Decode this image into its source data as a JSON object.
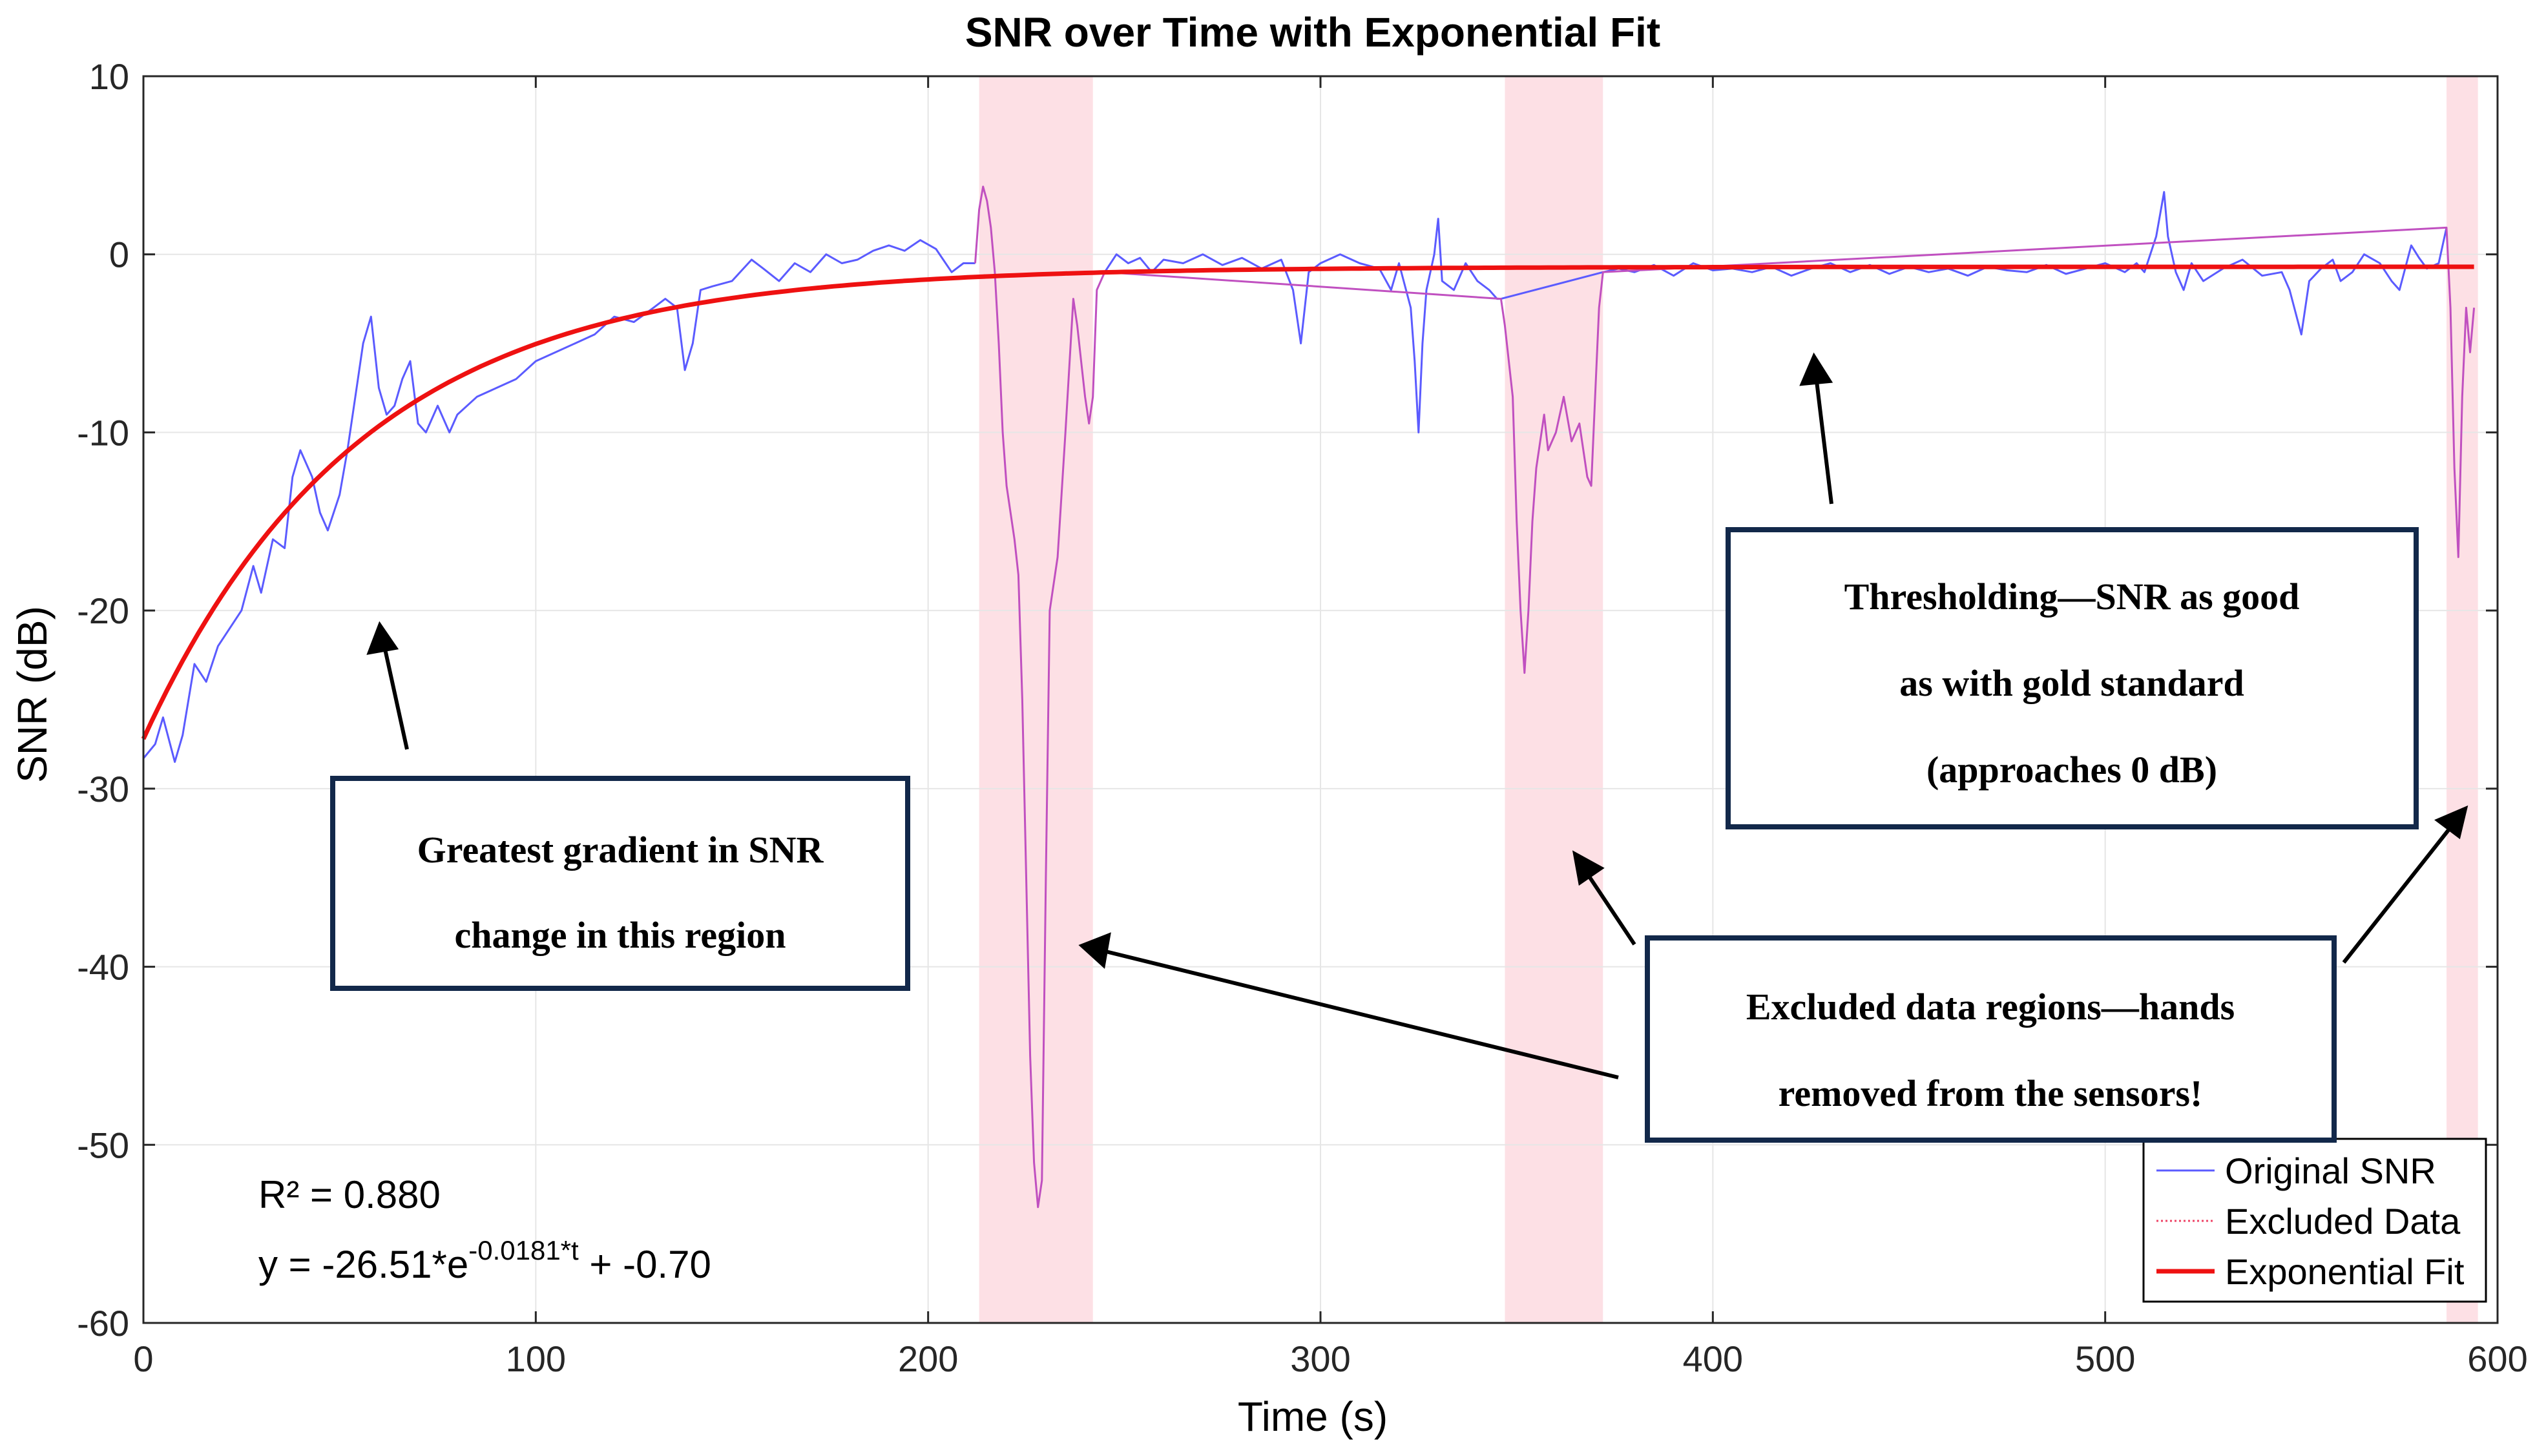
{
  "chart_data": {
    "type": "line",
    "title": "SNR over Time with Exponential Fit",
    "xlabel": "Time (s)",
    "ylabel": "SNR (dB)",
    "xlim": [
      0,
      600
    ],
    "ylim": [
      -60,
      10
    ],
    "xticks": [
      0,
      100,
      200,
      300,
      400,
      500,
      600
    ],
    "yticks": [
      10,
      0,
      -10,
      -20,
      -30,
      -40,
      -50,
      -60
    ],
    "grid": true,
    "legend_position": "bottom-right",
    "colors": {
      "original": "#5b5bff",
      "excluded": "#c050c0",
      "fit": "#ee1111",
      "shade": "#fde0e5",
      "box_border": "#12284a",
      "arrow": "#000000"
    },
    "legend": [
      "Original SNR",
      "Excluded Data",
      "Exponential Fit"
    ],
    "excluded_regions": [
      [
        213,
        242
      ],
      [
        347,
        372
      ],
      [
        587,
        595
      ]
    ],
    "fit": {
      "a": -26.51,
      "b": -0.0181,
      "c": -0.7
    },
    "stats": {
      "r2_label": "R² = 0.880",
      "eq_prefix": "y = -26.51*e",
      "eq_exponent": "-0.0181*t",
      "eq_suffix": " + -0.70"
    },
    "original_snr": [
      [
        0,
        -28.3
      ],
      [
        3,
        -27.5
      ],
      [
        5,
        -26.0
      ],
      [
        8,
        -28.5
      ],
      [
        10,
        -27.0
      ],
      [
        13,
        -23.0
      ],
      [
        16,
        -24.0
      ],
      [
        19,
        -22.0
      ],
      [
        22,
        -21.0
      ],
      [
        25,
        -20.0
      ],
      [
        28,
        -17.5
      ],
      [
        30,
        -19.0
      ],
      [
        33,
        -16.0
      ],
      [
        36,
        -16.5
      ],
      [
        38,
        -12.5
      ],
      [
        40,
        -11.0
      ],
      [
        43,
        -12.5
      ],
      [
        45,
        -14.5
      ],
      [
        47,
        -15.5
      ],
      [
        50,
        -13.5
      ],
      [
        52,
        -11.0
      ],
      [
        54,
        -8.0
      ],
      [
        56,
        -5.0
      ],
      [
        58,
        -3.5
      ],
      [
        60,
        -7.5
      ],
      [
        62,
        -9.0
      ],
      [
        64,
        -8.5
      ],
      [
        66,
        -7.0
      ],
      [
        68,
        -6.0
      ],
      [
        70,
        -9.5
      ],
      [
        72,
        -10.0
      ],
      [
        75,
        -8.5
      ],
      [
        78,
        -10.0
      ],
      [
        80,
        -9.0
      ],
      [
        85,
        -8.0
      ],
      [
        90,
        -7.5
      ],
      [
        95,
        -7.0
      ],
      [
        100,
        -6.0
      ],
      [
        105,
        -5.5
      ],
      [
        110,
        -5.0
      ],
      [
        115,
        -4.5
      ],
      [
        120,
        -3.5
      ],
      [
        125,
        -3.8
      ],
      [
        130,
        -3.0
      ],
      [
        133,
        -2.5
      ],
      [
        136,
        -3.0
      ],
      [
        138,
        -6.5
      ],
      [
        140,
        -5.0
      ],
      [
        142,
        -2.0
      ],
      [
        145,
        -1.8
      ],
      [
        150,
        -1.5
      ],
      [
        155,
        -0.3
      ],
      [
        158,
        -0.8
      ],
      [
        162,
        -1.5
      ],
      [
        166,
        -0.5
      ],
      [
        170,
        -1.0
      ],
      [
        174,
        0.0
      ],
      [
        178,
        -0.5
      ],
      [
        182,
        -0.3
      ],
      [
        186,
        0.2
      ],
      [
        190,
        0.5
      ],
      [
        194,
        0.2
      ],
      [
        198,
        0.8
      ],
      [
        202,
        0.3
      ],
      [
        206,
        -1.0
      ],
      [
        209,
        -0.5
      ],
      [
        212,
        -0.5
      ]
    ],
    "excluded_series": [
      [
        212,
        -0.5
      ],
      [
        213,
        2.5
      ],
      [
        214,
        3.8
      ],
      [
        215,
        3.0
      ],
      [
        216,
        1.5
      ],
      [
        217,
        -1.0
      ],
      [
        218,
        -5.0
      ],
      [
        219,
        -10.0
      ],
      [
        220,
        -13.0
      ],
      [
        222,
        -16.0
      ],
      [
        223,
        -18.0
      ],
      [
        224,
        -25.0
      ],
      [
        225,
        -35.0
      ],
      [
        226,
        -45.0
      ],
      [
        227,
        -51.0
      ],
      [
        228,
        -53.5
      ],
      [
        229,
        -52.0
      ],
      [
        230,
        -35.0
      ],
      [
        231,
        -20.0
      ],
      [
        233,
        -17.0
      ],
      [
        235,
        -10.0
      ],
      [
        237,
        -2.5
      ],
      [
        238,
        -4.0
      ],
      [
        239,
        -6.0
      ],
      [
        240,
        -8.0
      ],
      [
        241,
        -9.5
      ],
      [
        242,
        -8.0
      ],
      [
        243,
        -2.0
      ],
      [
        245,
        -1.0
      ],
      [
        346,
        -2.5
      ],
      [
        347,
        -4.0
      ],
      [
        349,
        -8.0
      ],
      [
        350,
        -15.0
      ],
      [
        351,
        -20.0
      ],
      [
        352,
        -23.5
      ],
      [
        353,
        -20.0
      ],
      [
        354,
        -15.0
      ],
      [
        355,
        -12.0
      ],
      [
        357,
        -9.0
      ],
      [
        358,
        -11.0
      ],
      [
        360,
        -10.0
      ],
      [
        362,
        -8.0
      ],
      [
        364,
        -10.5
      ],
      [
        366,
        -9.5
      ],
      [
        368,
        -12.5
      ],
      [
        369,
        -13.0
      ],
      [
        370,
        -8.0
      ],
      [
        371,
        -3.0
      ],
      [
        372,
        -1.0
      ],
      [
        587,
        1.5
      ],
      [
        588,
        -3.0
      ],
      [
        589,
        -12.0
      ],
      [
        590,
        -17.0
      ],
      [
        591,
        -8.0
      ],
      [
        592,
        -3.0
      ],
      [
        593,
        -5.5
      ],
      [
        594,
        -3.0
      ]
    ],
    "original_tail": [
      [
        245,
        -1.0
      ],
      [
        248,
        0.0
      ],
      [
        251,
        -0.5
      ],
      [
        254,
        -0.2
      ],
      [
        257,
        -1.0
      ],
      [
        260,
        -0.3
      ],
      [
        265,
        -0.5
      ],
      [
        270,
        0.0
      ],
      [
        275,
        -0.6
      ],
      [
        280,
        -0.2
      ],
      [
        285,
        -0.8
      ],
      [
        290,
        -0.3
      ],
      [
        293,
        -2.0
      ],
      [
        295,
        -5.0
      ],
      [
        297,
        -1.0
      ],
      [
        300,
        -0.5
      ],
      [
        305,
        0.0
      ],
      [
        310,
        -0.5
      ],
      [
        315,
        -0.8
      ],
      [
        318,
        -2.0
      ],
      [
        320,
        -0.5
      ],
      [
        323,
        -3.0
      ],
      [
        324,
        -6.0
      ],
      [
        325,
        -10.0
      ],
      [
        326,
        -5.0
      ],
      [
        327,
        -2.0
      ],
      [
        329,
        0.0
      ],
      [
        330,
        2.0
      ],
      [
        331,
        -1.5
      ],
      [
        334,
        -2.0
      ],
      [
        337,
        -0.5
      ],
      [
        340,
        -1.5
      ],
      [
        343,
        -2.0
      ],
      [
        345,
        -2.5
      ],
      [
        346,
        -2.5
      ],
      [
        372,
        -1.0
      ],
      [
        376,
        -0.8
      ],
      [
        380,
        -1.0
      ],
      [
        385,
        -0.6
      ],
      [
        390,
        -1.2
      ],
      [
        395,
        -0.5
      ],
      [
        400,
        -0.9
      ],
      [
        405,
        -0.8
      ],
      [
        410,
        -1.0
      ],
      [
        415,
        -0.7
      ],
      [
        420,
        -1.2
      ],
      [
        425,
        -0.8
      ],
      [
        430,
        -0.5
      ],
      [
        435,
        -1.0
      ],
      [
        440,
        -0.6
      ],
      [
        445,
        -1.1
      ],
      [
        450,
        -0.7
      ],
      [
        455,
        -1.0
      ],
      [
        460,
        -0.8
      ],
      [
        465,
        -1.2
      ],
      [
        470,
        -0.7
      ],
      [
        475,
        -0.9
      ],
      [
        480,
        -1.0
      ],
      [
        485,
        -0.6
      ],
      [
        490,
        -1.1
      ],
      [
        495,
        -0.8
      ],
      [
        500,
        -0.5
      ],
      [
        505,
        -1.0
      ],
      [
        508,
        -0.5
      ],
      [
        510,
        -1.0
      ],
      [
        513,
        1.0
      ],
      [
        515,
        3.5
      ],
      [
        516,
        1.0
      ],
      [
        518,
        -1.0
      ],
      [
        520,
        -2.0
      ],
      [
        522,
        -0.5
      ],
      [
        525,
        -1.5
      ],
      [
        530,
        -0.8
      ],
      [
        535,
        -0.3
      ],
      [
        540,
        -1.2
      ],
      [
        545,
        -1.0
      ],
      [
        547,
        -2.0
      ],
      [
        550,
        -4.5
      ],
      [
        552,
        -1.5
      ],
      [
        555,
        -0.8
      ],
      [
        558,
        -0.3
      ],
      [
        560,
        -1.5
      ],
      [
        563,
        -1.0
      ],
      [
        566,
        0.0
      ],
      [
        570,
        -0.5
      ],
      [
        573,
        -1.5
      ],
      [
        575,
        -2.0
      ],
      [
        578,
        0.5
      ],
      [
        580,
        -0.2
      ],
      [
        582,
        -0.8
      ],
      [
        585,
        -0.5
      ],
      [
        587,
        1.5
      ]
    ],
    "annotations": {
      "box1": [
        "Greatest gradient in SNR",
        "change in this region"
      ],
      "box2": [
        "Thresholding—SNR as good",
        "as with gold standard",
        "(approaches 0 dB)"
      ],
      "box3": [
        "Excluded data regions—hands",
        "removed from the sensors!"
      ]
    }
  }
}
